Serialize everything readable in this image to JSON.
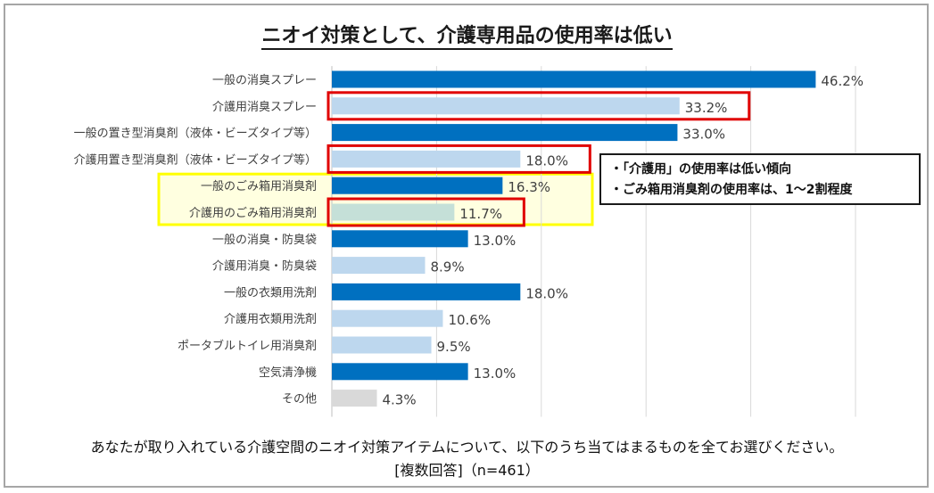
{
  "title": "ニオイ対策として、介護専用品の使用率は低い",
  "callout": {
    "line1": "・「介護用」の使用率は低い傾向",
    "line2": "・ごみ箱用消臭剤の使用率は、1～2割程度"
  },
  "footer": {
    "question": "あなたが取り入れている介護空間のニオイ対策アイテムについて、以下のうち当てはまるものを全てお選びください。",
    "note": "[複数回答]（n=461）"
  },
  "colors": {
    "general": "#0070c0",
    "care": "#bdd7ee",
    "care_highlight": "#c5e0d8",
    "other": "#d9d9d9",
    "red_box": "#e00000",
    "yellow_box": "#ffff00",
    "yellow_fill": "#ffffe0"
  },
  "chart_data": {
    "type": "bar",
    "orientation": "horizontal",
    "xlim": [
      0,
      50
    ],
    "grid": true,
    "value_suffix": "%",
    "categories": [
      "一般の消臭スプレー",
      "介護用消臭スプレー",
      "一般の置き型消臭剤（液体・ビーズタイプ等）",
      "介護用置き型消臭剤（液体・ビーズタイプ等）",
      "一般のごみ箱用消臭剤",
      "介護用のごみ箱用消臭剤",
      "一般の消臭・防臭袋",
      "介護用消臭・防臭袋",
      "一般の衣類用洗剤",
      "介護用衣類用洗剤",
      "ポータブルトイレ用消臭剤",
      "空気清浄機",
      "その他"
    ],
    "values": [
      46.2,
      33.2,
      33.0,
      18.0,
      16.3,
      11.7,
      13.0,
      8.9,
      18.0,
      10.6,
      9.5,
      13.0,
      4.3
    ],
    "labels": [
      "46.2%",
      "33.2%",
      "33.0%",
      "18.0%",
      "16.3%",
      "11.7%",
      "13.0%",
      "8.9%",
      "18.0%",
      "10.6%",
      "9.5%",
      "13.0%",
      "4.3%"
    ],
    "kinds": [
      "general",
      "care",
      "general",
      "care",
      "general",
      "care_highlight",
      "general",
      "care",
      "general",
      "care",
      "care",
      "general",
      "other"
    ],
    "red_highlight": [
      1,
      3,
      5
    ],
    "yellow_highlight": [
      4,
      5
    ]
  }
}
